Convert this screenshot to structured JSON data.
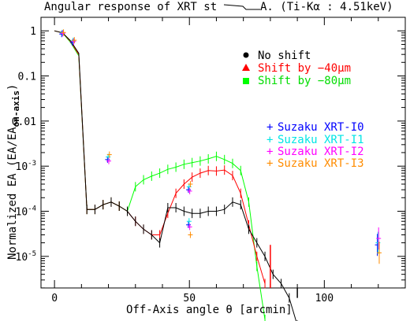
{
  "chart_data": {
    "type": "line",
    "title": "Angular response of XRT st",
    "title_tail": "A. (Ti-Kα : 4.51keV)",
    "xlabel": "Off-Axis angle θ [arcmin]",
    "ylabel": "Normalized EA (EA/EA",
    "ylabel_sub": "on-axis",
    "ylabel_close": ")",
    "xlim": [
      -5,
      130
    ],
    "ylim_log10": [
      -5.7,
      0.3
    ],
    "y_scale": "log",
    "x_ticks": [
      0,
      50,
      100
    ],
    "y_ticks": [
      {
        "exp": 0,
        "label": "1"
      },
      {
        "exp": -1,
        "label": "0.1"
      },
      {
        "exp": -2,
        "label": "0.01"
      },
      {
        "exp": -3,
        "label": "10",
        "sup": "-3"
      },
      {
        "exp": -4,
        "label": "10",
        "sup": "-4"
      },
      {
        "exp": -5,
        "label": "10",
        "sup": "-5"
      }
    ],
    "series": [
      {
        "name": "No shift",
        "marker": "circle",
        "color": "#000000",
        "x": [
          0,
          3,
          6,
          9,
          12,
          15,
          18,
          21,
          24,
          27,
          30,
          33,
          36,
          39,
          42,
          45,
          48,
          51,
          54,
          57,
          60,
          63,
          66,
          69,
          72,
          75,
          78,
          81,
          84,
          87,
          90
        ],
        "y": [
          1.0,
          0.9,
          0.6,
          0.32,
          0.00011,
          0.00011,
          0.00014,
          0.00016,
          0.00013,
          0.0001,
          6e-05,
          4e-05,
          3e-05,
          2e-05,
          0.00012,
          0.00012,
          0.0001,
          9e-05,
          9e-05,
          0.0001,
          0.0001,
          0.00011,
          0.00016,
          0.00014,
          4e-05,
          2e-05,
          1e-05,
          4e-06,
          2.5e-06,
          1.2e-06,
          3e-07
        ],
        "err": [
          0,
          0,
          0,
          0,
          0,
          0,
          0,
          0,
          0,
          0,
          0,
          0,
          0,
          0,
          0,
          0,
          0,
          0,
          0,
          0,
          0,
          0,
          0,
          0,
          0,
          0,
          0,
          0,
          0,
          0,
          0
        ]
      },
      {
        "name": "Shift by −40μm",
        "marker": "triangle",
        "color": "#ff0000",
        "x": [
          0,
          3,
          6,
          9,
          12,
          15,
          18,
          21,
          24,
          27,
          30,
          33,
          36,
          39,
          42,
          45,
          48,
          51,
          54,
          57,
          60,
          63,
          66,
          69,
          72,
          75,
          78
        ],
        "y": [
          1.0,
          0.9,
          0.58,
          0.3,
          0.00011,
          0.00011,
          0.00014,
          0.00016,
          0.00013,
          0.0001,
          6e-05,
          4e-05,
          3e-05,
          3e-05,
          9e-05,
          0.00025,
          0.0004,
          0.00057,
          0.0007,
          0.0008,
          0.00078,
          0.00082,
          0.00062,
          0.00025,
          5e-05,
          1e-05,
          2.5e-06
        ]
      },
      {
        "name": "Shift by −80μm",
        "marker": "square",
        "color": "#00ff00",
        "x": [
          0,
          3,
          6,
          9,
          12,
          15,
          18,
          21,
          24,
          27,
          30,
          33,
          36,
          39,
          42,
          45,
          48,
          51,
          54,
          57,
          60,
          63,
          66,
          69,
          72,
          75,
          78
        ],
        "y": [
          1.0,
          0.9,
          0.55,
          0.28,
          0.00011,
          0.00011,
          0.00014,
          0.00016,
          0.00013,
          0.0001,
          0.00035,
          0.0005,
          0.0006,
          0.0007,
          0.00085,
          0.00095,
          0.0011,
          0.0012,
          0.0013,
          0.00145,
          0.00165,
          0.0014,
          0.00115,
          0.0008,
          0.00016,
          6e-06,
          4e-07
        ]
      }
    ],
    "suzaku_points": [
      {
        "name": "Suzaku XRT-I0",
        "color": "#0000ff",
        "x": [
          3,
          7,
          20,
          50,
          50,
          120
        ],
        "y": [
          0.85,
          0.55,
          0.0014,
          0.0003,
          5e-05,
          1.8e-05
        ]
      },
      {
        "name": "Suzaku XRT-I1",
        "color": "#00e5e5",
        "x": [
          3,
          7,
          20,
          50,
          50,
          120
        ],
        "y": [
          0.9,
          0.6,
          0.0016,
          0.00035,
          6e-05,
          2e-05
        ]
      },
      {
        "name": "Suzaku XRT-I2",
        "color": "#ff00ff",
        "x": [
          3,
          7,
          20,
          50,
          50,
          120
        ],
        "y": [
          0.88,
          0.58,
          0.0013,
          0.00028,
          4.5e-05,
          2.5e-05
        ]
      },
      {
        "name": "Suzaku XRT-I3",
        "color": "#ff8c00",
        "x": [
          3,
          7,
          20,
          50,
          50,
          120
        ],
        "y": [
          0.92,
          0.62,
          0.0018,
          0.0004,
          3e-05,
          1.2e-05
        ]
      }
    ],
    "legend_top": [
      "No shift",
      "Shift by −40μm",
      "Shift by −80μm"
    ],
    "legend_right": [
      "Suzaku XRT-I0",
      "Suzaku XRT-I1",
      "Suzaku XRT-I2",
      "Suzaku XRT-I3"
    ]
  }
}
